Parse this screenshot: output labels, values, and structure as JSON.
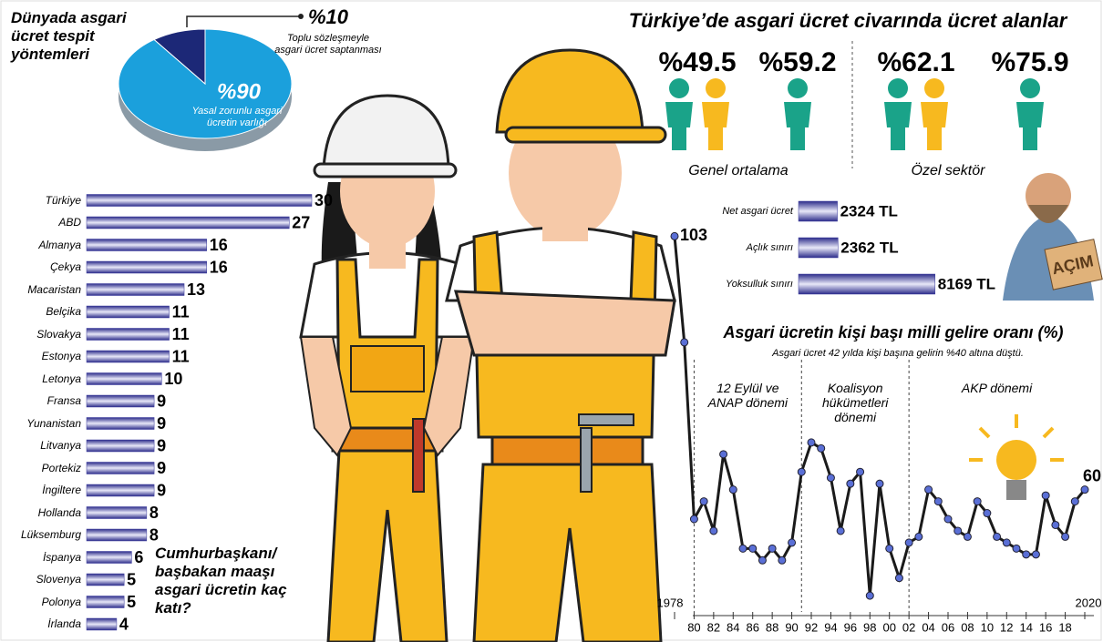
{
  "summary": {
    "title": "Türkiye’de asgari ücret civarında ücret alanlar",
    "groups": [
      {
        "label": "Genel ortalama",
        "items": [
          "%49.5",
          "%59.2"
        ]
      },
      {
        "label": "Özel sektör",
        "items": [
          "%62.1",
          "%75.9"
        ]
      }
    ]
  },
  "illustration": {
    "sign": "AÇIM"
  },
  "chart_data": [
    {
      "type": "pie",
      "title": "Dünyada asgari ücret tespit yöntemleri",
      "categories": [
        "Yasal zorunlu asgari ücretin varlığı",
        "Toplu sözleşmeyle asgari ücret saptanması"
      ],
      "values": [
        90,
        10
      ],
      "value_labels": [
        "%90",
        "%10"
      ],
      "colors": [
        "#1ba0dc",
        "#1c2877"
      ]
    },
    {
      "type": "hbar",
      "title": "Cumhurbaşkanı/ başbakan maaşı asgari ücretin kaç katı?",
      "categories": [
        "Türkiye",
        "ABD",
        "Almanya",
        "Çekya",
        "Macaristan",
        "Belçika",
        "Slovakya",
        "Estonya",
        "Letonya",
        "Fransa",
        "Yunanistan",
        "Litvanya",
        "Portekiz",
        "İngiltere",
        "Hollanda",
        "Lüksemburg",
        "İspanya",
        "Slovenya",
        "Polonya",
        "İrlanda"
      ],
      "values": [
        30,
        27,
        16,
        16,
        13,
        11,
        11,
        11,
        10,
        9,
        9,
        9,
        9,
        9,
        8,
        8,
        6,
        5,
        5,
        4
      ],
      "color": "#3b3b9e",
      "xlim": [
        0,
        30
      ]
    },
    {
      "type": "hbar",
      "categories": [
        "Net asgari ücret",
        "Açlık sınırı",
        "Yoksulluk sınırı"
      ],
      "values": [
        2324,
        2362,
        8169
      ],
      "value_labels": [
        "2324 TL",
        "2362 TL",
        "8169 TL"
      ],
      "color": "#3b3b9e",
      "xlim": [
        0,
        9000
      ]
    },
    {
      "type": "line",
      "title": "Asgari ücretin kişi başı milli gelire oranı (%)",
      "subtitle": "Asgari ücret 42 yılda kişi başına gelirin %40 altına düştü.",
      "x": [
        1978,
        1979,
        1980,
        1981,
        1982,
        1983,
        1984,
        1985,
        1986,
        1987,
        1988,
        1989,
        1990,
        1991,
        1992,
        1993,
        1994,
        1995,
        1996,
        1997,
        1998,
        1999,
        2000,
        2001,
        2002,
        2003,
        2004,
        2005,
        2006,
        2007,
        2008,
        2009,
        2010,
        2011,
        2012,
        2013,
        2014,
        2015,
        2016,
        2017,
        2018,
        2019,
        2020
      ],
      "values": [
        103,
        85,
        55,
        58,
        53,
        66,
        60,
        50,
        50,
        48,
        50,
        48,
        51,
        63,
        68,
        67,
        62,
        53,
        61,
        63,
        42,
        61,
        50,
        45,
        51,
        52,
        60,
        58,
        55,
        53,
        52,
        58,
        56,
        52,
        51,
        50,
        49,
        49,
        59,
        54,
        52,
        58,
        60
      ],
      "color": "#1a1a1a",
      "marker_color": "#5a6fd6",
      "xlim": [
        1978,
        2020
      ],
      "ylim": [
        38,
        106
      ],
      "xticks": [
        1978,
        {
          "value": 1980,
          "label": "80"
        },
        {
          "value": 1982,
          "label": "82"
        },
        {
          "value": 1984,
          "label": "84"
        },
        {
          "value": 1986,
          "label": "86"
        },
        {
          "value": 1988,
          "label": "88"
        },
        {
          "value": 1990,
          "label": "90"
        },
        {
          "value": 1992,
          "label": "92"
        },
        {
          "value": 1994,
          "label": "94"
        },
        {
          "value": 1996,
          "label": "96"
        },
        {
          "value": 1998,
          "label": "98"
        },
        {
          "value": 2000,
          "label": "00"
        },
        {
          "value": 2002,
          "label": "02"
        },
        {
          "value": 2004,
          "label": "04"
        },
        {
          "value": 2006,
          "label": "06"
        },
        {
          "value": 2008,
          "label": "08"
        },
        {
          "value": 2010,
          "label": "10"
        },
        {
          "value": 2012,
          "label": "12"
        },
        {
          "value": 2014,
          "label": "14"
        },
        {
          "value": 2016,
          "label": "16"
        },
        {
          "value": 2018,
          "label": "18"
        },
        2020
      ],
      "annotations": [
        {
          "label": "12 Eylül ve ANAP dönemi",
          "x": 1980
        },
        {
          "label": "Koalisyon hükümetleri dönemi",
          "x": 1991
        },
        {
          "label": "AKP dönemi",
          "x": 2002
        }
      ]
    }
  ]
}
